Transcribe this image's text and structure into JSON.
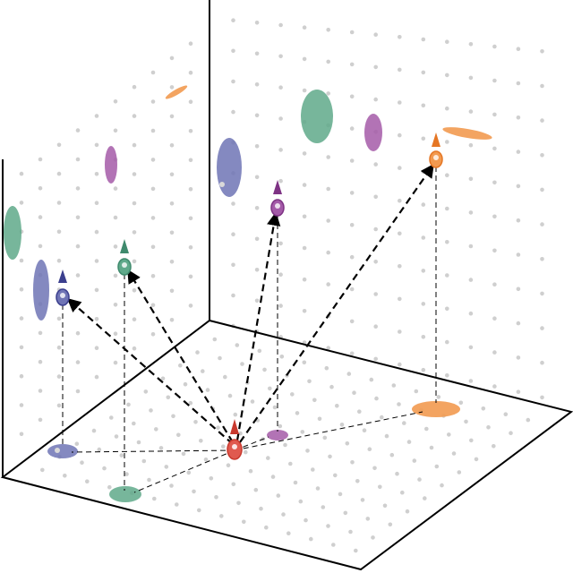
{
  "diagram": {
    "title": "",
    "source_color": "#e05a4f",
    "colors": {
      "blue": "#6f74b5",
      "green": "#5fa98a",
      "purple": "#a45aa8",
      "orange": "#f29a50",
      "red": "#e05a4f",
      "dot": "#cfcfcf",
      "frame": "#000000"
    },
    "nodes": [
      {
        "id": "source",
        "color_key": "red",
        "icon": "arrow-up-icon"
      },
      {
        "id": "blue",
        "color_key": "blue",
        "icon": "arrow-up-icon"
      },
      {
        "id": "green",
        "color_key": "green",
        "icon": "arrow-up-icon"
      },
      {
        "id": "purple",
        "color_key": "purple",
        "icon": "arrow-up-icon"
      },
      {
        "id": "orange",
        "color_key": "orange",
        "icon": "arrow-up-icon"
      }
    ]
  }
}
